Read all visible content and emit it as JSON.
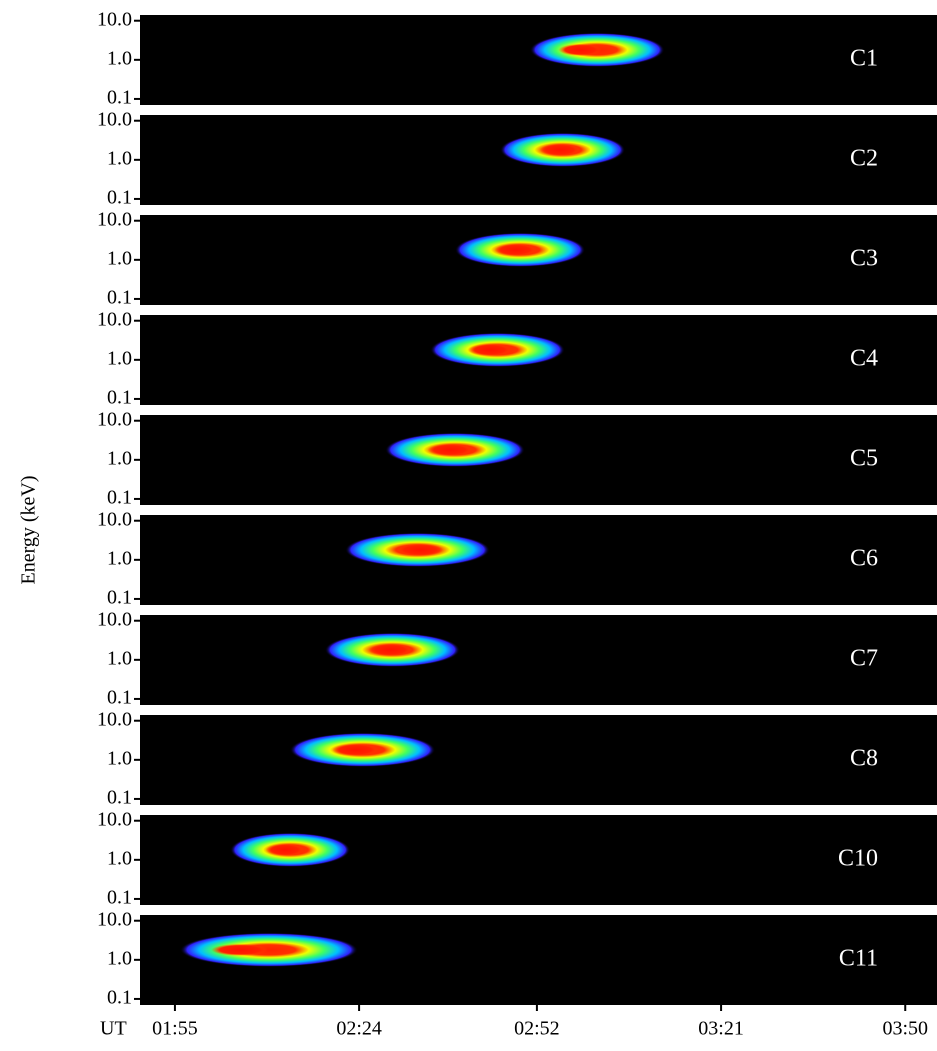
{
  "chart_data": {
    "type": "spectrogram",
    "ylabel": "Energy (keV)",
    "xlabel": "UT",
    "ylog": true,
    "ylim": [
      0.07,
      14
    ],
    "yticks": [
      {
        "value": 10,
        "label": "10.0"
      },
      {
        "value": 1,
        "label": "1.0"
      },
      {
        "value": 0.1,
        "label": "0.1"
      }
    ],
    "xlim": [
      109.5,
      235
    ],
    "xticks": [
      {
        "value": 115,
        "label": "01:55"
      },
      {
        "value": 144,
        "label": "02:24"
      },
      {
        "value": 172,
        "label": "02:52"
      },
      {
        "value": 201,
        "label": "03:21"
      },
      {
        "value": 230,
        "label": "03:50"
      }
    ],
    "panels": [
      {
        "name": "C1",
        "start": 170.9,
        "end": 192.1,
        "peak": 178.8,
        "energy": 1.8
      },
      {
        "name": "C2",
        "start": 166.2,
        "end": 185.9,
        "peak": 175.6,
        "energy": 1.8
      },
      {
        "name": "C3",
        "start": 159.1,
        "end": 179.6,
        "peak": 168.6,
        "energy": 1.8
      },
      {
        "name": "C4",
        "start": 155.2,
        "end": 176.4,
        "peak": 164.6,
        "energy": 1.8
      },
      {
        "name": "C5",
        "start": 148.1,
        "end": 170.1,
        "peak": 158.3,
        "energy": 1.8
      },
      {
        "name": "C6",
        "start": 141.8,
        "end": 164.6,
        "peak": 153.6,
        "energy": 1.8
      },
      {
        "name": "C7",
        "start": 138.6,
        "end": 159.9,
        "peak": 148.9,
        "energy": 1.8
      },
      {
        "name": "C8",
        "start": 133.1,
        "end": 156.0,
        "peak": 143.4,
        "energy": 1.8
      },
      {
        "name": "C10",
        "start": 123.7,
        "end": 142.6,
        "peak": 132.3,
        "energy": 1.8
      },
      {
        "name": "C11",
        "start": 115.8,
        "end": 143.8,
        "peak": 125.2,
        "energy": 1.8
      }
    ]
  }
}
